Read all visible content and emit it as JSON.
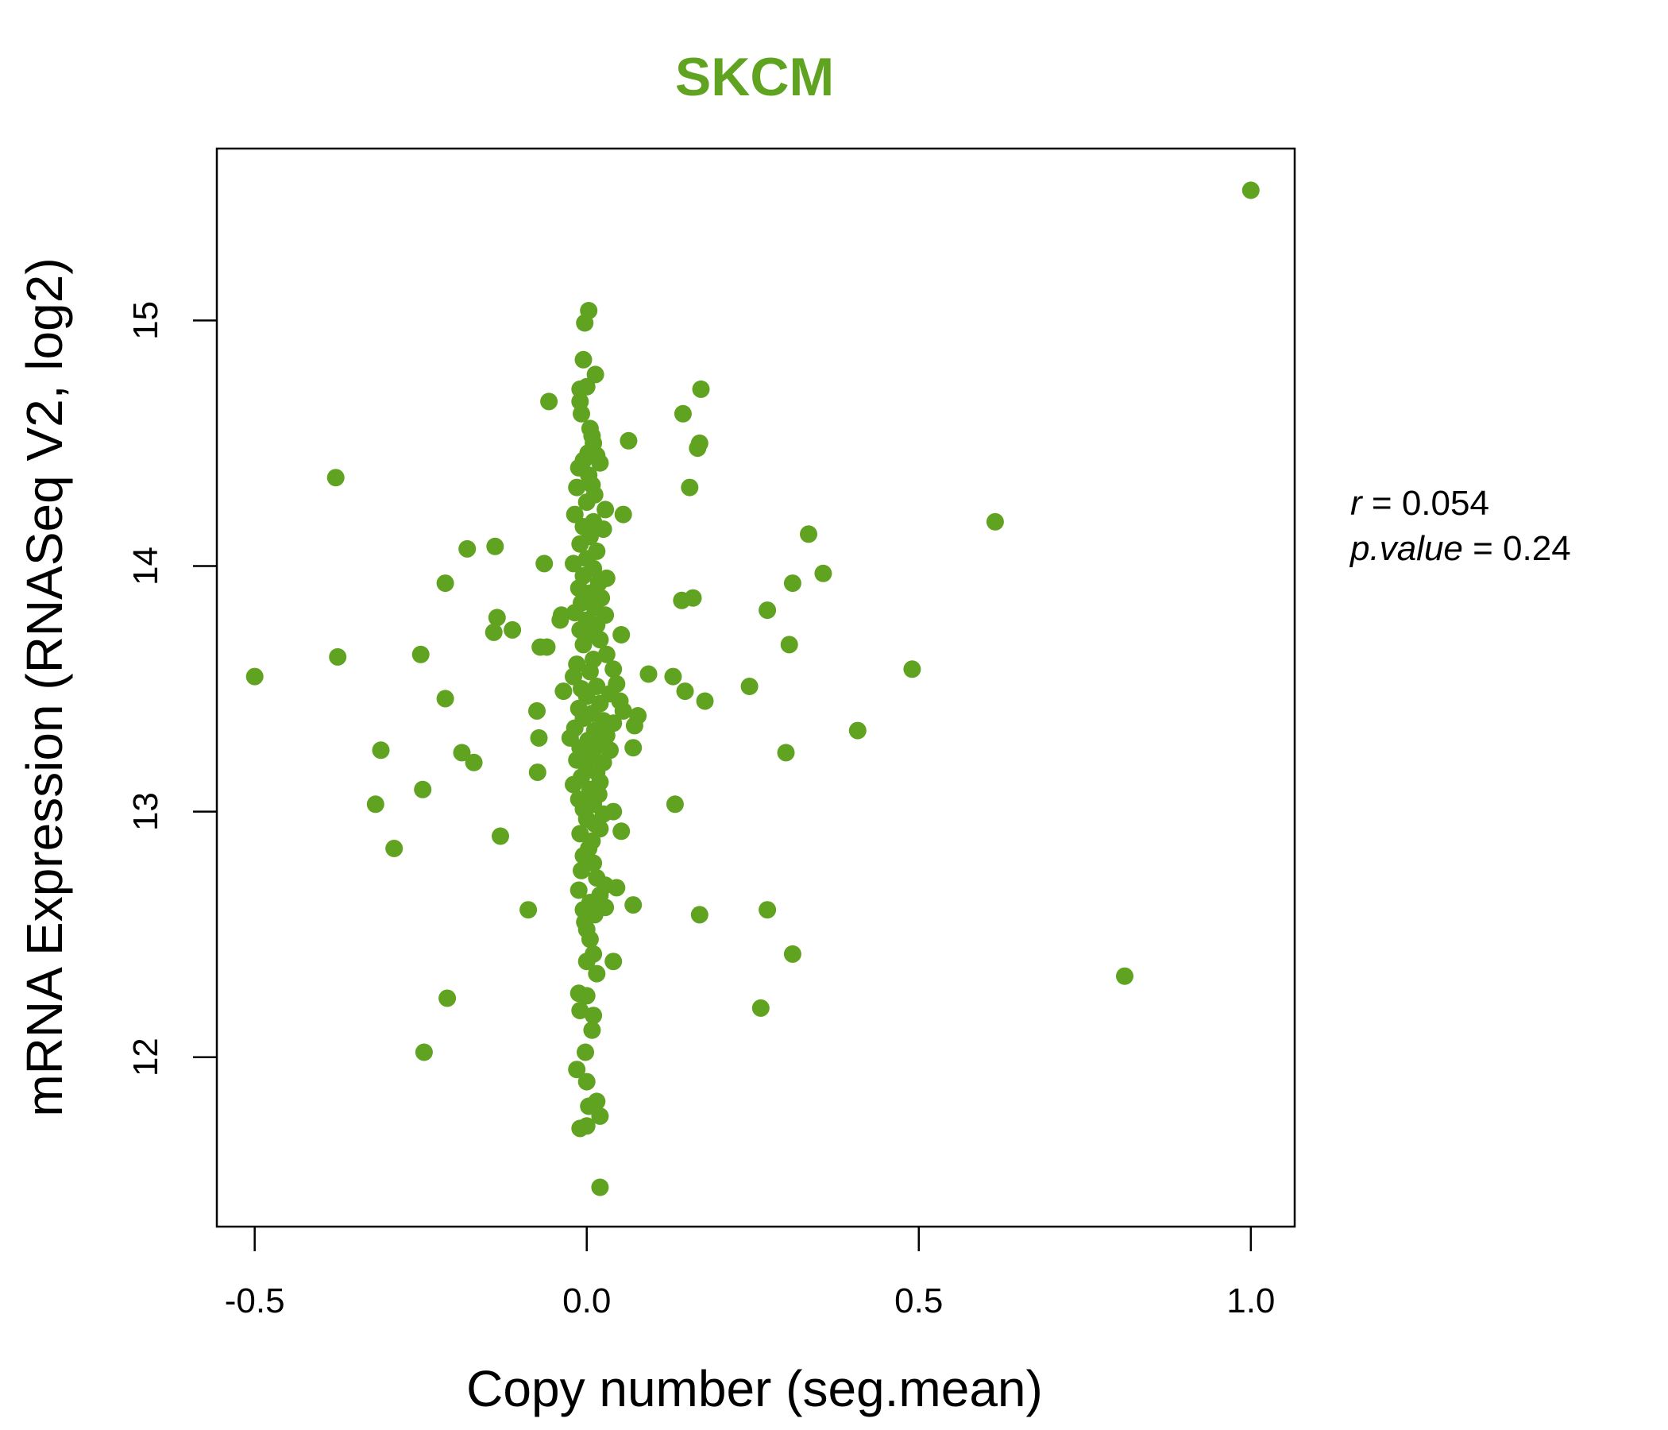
{
  "chart_data": {
    "type": "scatter",
    "title": "SKCM",
    "xlabel": "Copy number (seg.mean)",
    "ylabel": "mRNA Expression (RNASeq V2, log2)",
    "xlim": [
      -0.557,
      1.066
    ],
    "ylim": [
      11.31,
      15.7
    ],
    "xticks": [
      -0.5,
      0.0,
      0.5,
      1.0
    ],
    "xtick_labels": [
      "-0.5",
      "0.0",
      "0.5",
      "1.0"
    ],
    "yticks": [
      12,
      13,
      14,
      15
    ],
    "ytick_labels": [
      "12",
      "13",
      "14",
      "15"
    ],
    "grid": false,
    "legend": "none",
    "point_color": "#5fa320",
    "title_color": "#5fa320",
    "stats": {
      "r_symbol": "r",
      "r_value": "0.054",
      "p_symbol": "p.value",
      "p_value": "0.24"
    },
    "points": [
      [
        1.0,
        15.53
      ],
      [
        0.81,
        12.33
      ],
      [
        0.615,
        14.18
      ],
      [
        0.49,
        13.58
      ],
      [
        0.408,
        13.33
      ],
      [
        0.356,
        13.97
      ],
      [
        0.334,
        14.13
      ],
      [
        0.31,
        13.93
      ],
      [
        0.305,
        13.68
      ],
      [
        0.3,
        13.24
      ],
      [
        0.31,
        12.42
      ],
      [
        0.272,
        13.82
      ],
      [
        0.272,
        12.6
      ],
      [
        0.262,
        12.2
      ],
      [
        0.245,
        13.51
      ],
      [
        0.172,
        14.72
      ],
      [
        0.17,
        14.5
      ],
      [
        0.167,
        14.48
      ],
      [
        0.145,
        14.62
      ],
      [
        0.155,
        14.32
      ],
      [
        0.143,
        13.86
      ],
      [
        0.16,
        13.87
      ],
      [
        0.13,
        13.55
      ],
      [
        0.148,
        13.49
      ],
      [
        0.178,
        13.45
      ],
      [
        0.133,
        13.03
      ],
      [
        0.17,
        12.58
      ],
      [
        0.093,
        13.56
      ],
      [
        0.063,
        14.51
      ],
      [
        0.055,
        14.21
      ],
      [
        0.052,
        13.72
      ],
      [
        0.07,
        13.26
      ],
      [
        0.077,
        13.39
      ],
      [
        0.072,
        13.35
      ],
      [
        0.052,
        12.92
      ],
      [
        0.07,
        12.62
      ],
      [
        0.045,
        12.69
      ],
      [
        0.04,
        12.39
      ],
      [
        0.04,
        13.0
      ],
      [
        -0.057,
        14.67
      ],
      [
        -0.064,
        14.01
      ],
      [
        -0.06,
        13.67
      ],
      [
        -0.07,
        13.67
      ],
      [
        -0.04,
        13.78
      ],
      [
        -0.038,
        13.8
      ],
      [
        -0.035,
        13.49
      ],
      [
        -0.075,
        13.41
      ],
      [
        -0.072,
        13.3
      ],
      [
        -0.074,
        13.16
      ],
      [
        -0.088,
        12.6
      ],
      [
        -0.138,
        14.08
      ],
      [
        -0.135,
        13.79
      ],
      [
        -0.14,
        13.73
      ],
      [
        -0.112,
        13.74
      ],
      [
        -0.13,
        12.9
      ],
      [
        -0.18,
        14.07
      ],
      [
        -0.213,
        13.93
      ],
      [
        -0.213,
        13.46
      ],
      [
        -0.188,
        13.24
      ],
      [
        -0.17,
        13.2
      ],
      [
        -0.25,
        13.64
      ],
      [
        -0.247,
        13.09
      ],
      [
        -0.21,
        12.24
      ],
      [
        -0.245,
        12.02
      ],
      [
        -0.378,
        14.36
      ],
      [
        -0.375,
        13.63
      ],
      [
        -0.31,
        13.25
      ],
      [
        -0.318,
        13.03
      ],
      [
        -0.29,
        12.85
      ],
      [
        -0.5,
        13.55
      ],
      [
        0.003,
        15.04
      ],
      [
        -0.003,
        14.99
      ],
      [
        -0.005,
        14.84
      ],
      [
        0.013,
        14.78
      ],
      [
        0.0,
        14.73
      ],
      [
        -0.01,
        14.72
      ],
      [
        -0.01,
        14.67
      ],
      [
        -0.008,
        14.62
      ],
      [
        0.005,
        14.56
      ],
      [
        0.008,
        14.53
      ],
      [
        0.01,
        14.5
      ],
      [
        0.002,
        14.46
      ],
      [
        -0.005,
        14.43
      ],
      [
        0.015,
        14.45
      ],
      [
        0.02,
        14.42
      ],
      [
        -0.012,
        14.4
      ],
      [
        0.003,
        14.37
      ],
      [
        0.008,
        14.33
      ],
      [
        -0.015,
        14.32
      ],
      [
        0.012,
        14.29
      ],
      [
        0.0,
        14.26
      ],
      [
        0.028,
        14.23
      ],
      [
        -0.018,
        14.21
      ],
      [
        0.01,
        14.18
      ],
      [
        -0.005,
        14.16
      ],
      [
        0.025,
        14.15
      ],
      [
        0.005,
        14.12
      ],
      [
        -0.01,
        14.09
      ],
      [
        0.015,
        14.06
      ],
      [
        0.0,
        14.03
      ],
      [
        -0.02,
        14.01
      ],
      [
        0.01,
        13.99
      ],
      [
        -0.005,
        13.96
      ],
      [
        0.03,
        13.95
      ],
      [
        0.018,
        13.93
      ],
      [
        -0.012,
        13.91
      ],
      [
        0.005,
        13.89
      ],
      [
        0.022,
        13.87
      ],
      [
        -0.008,
        13.85
      ],
      [
        0.012,
        13.83
      ],
      [
        -0.018,
        13.81
      ],
      [
        0.028,
        13.8
      ],
      [
        0.0,
        13.78
      ],
      [
        0.015,
        13.76
      ],
      [
        -0.01,
        13.74
      ],
      [
        0.008,
        13.72
      ],
      [
        0.02,
        13.7
      ],
      [
        -0.005,
        13.68
      ],
      [
        0.03,
        13.64
      ],
      [
        0.01,
        13.62
      ],
      [
        -0.015,
        13.6
      ],
      [
        0.04,
        13.58
      ],
      [
        0.005,
        13.57
      ],
      [
        -0.02,
        13.55
      ],
      [
        0.045,
        13.52
      ],
      [
        0.015,
        13.51
      ],
      [
        -0.008,
        13.5
      ],
      [
        0.035,
        13.48
      ],
      [
        0.0,
        13.47
      ],
      [
        0.05,
        13.45
      ],
      [
        0.02,
        13.44
      ],
      [
        -0.012,
        13.42
      ],
      [
        0.055,
        13.41
      ],
      [
        0.008,
        13.4
      ],
      [
        -0.005,
        13.38
      ],
      [
        0.025,
        13.37
      ],
      [
        0.04,
        13.36
      ],
      [
        -0.018,
        13.34
      ],
      [
        0.012,
        13.33
      ],
      [
        0.03,
        13.31
      ],
      [
        -0.025,
        13.3
      ],
      [
        0.002,
        13.29
      ],
      [
        0.02,
        13.27
      ],
      [
        -0.01,
        13.26
      ],
      [
        0.035,
        13.25
      ],
      [
        0.008,
        13.23
      ],
      [
        -0.015,
        13.21
      ],
      [
        0.025,
        13.2
      ],
      [
        0.0,
        13.18
      ],
      [
        0.015,
        13.16
      ],
      [
        -0.008,
        13.14
      ],
      [
        0.02,
        13.12
      ],
      [
        -0.02,
        13.11
      ],
      [
        0.005,
        13.09
      ],
      [
        0.018,
        13.07
      ],
      [
        -0.012,
        13.05
      ],
      [
        0.01,
        13.03
      ],
      [
        -0.005,
        13.01
      ],
      [
        0.025,
        12.99
      ],
      [
        0.0,
        12.97
      ],
      [
        0.012,
        12.95
      ],
      [
        0.02,
        12.93
      ],
      [
        -0.01,
        12.91
      ],
      [
        0.008,
        12.88
      ],
      [
        0.003,
        12.85
      ],
      [
        -0.005,
        12.82
      ],
      [
        0.01,
        12.79
      ],
      [
        -0.008,
        12.76
      ],
      [
        0.015,
        12.73
      ],
      [
        0.028,
        12.7
      ],
      [
        -0.012,
        12.68
      ],
      [
        0.02,
        12.66
      ],
      [
        0.005,
        12.63
      ],
      [
        0.028,
        12.61
      ],
      [
        -0.005,
        12.6
      ],
      [
        0.012,
        12.58
      ],
      [
        -0.003,
        12.55
      ],
      [
        0.0,
        12.52
      ],
      [
        0.005,
        12.48
      ],
      [
        0.01,
        12.42
      ],
      [
        0.0,
        12.39
      ],
      [
        0.015,
        12.34
      ],
      [
        -0.012,
        12.26
      ],
      [
        0.0,
        12.25
      ],
      [
        -0.01,
        12.19
      ],
      [
        0.01,
        12.17
      ],
      [
        0.008,
        12.11
      ],
      [
        -0.002,
        12.02
      ],
      [
        -0.015,
        11.95
      ],
      [
        0.0,
        11.9
      ],
      [
        0.015,
        11.82
      ],
      [
        0.003,
        11.8
      ],
      [
        0.02,
        11.76
      ],
      [
        0.0,
        11.72
      ],
      [
        -0.01,
        11.71
      ],
      [
        0.02,
        11.47
      ]
    ]
  }
}
